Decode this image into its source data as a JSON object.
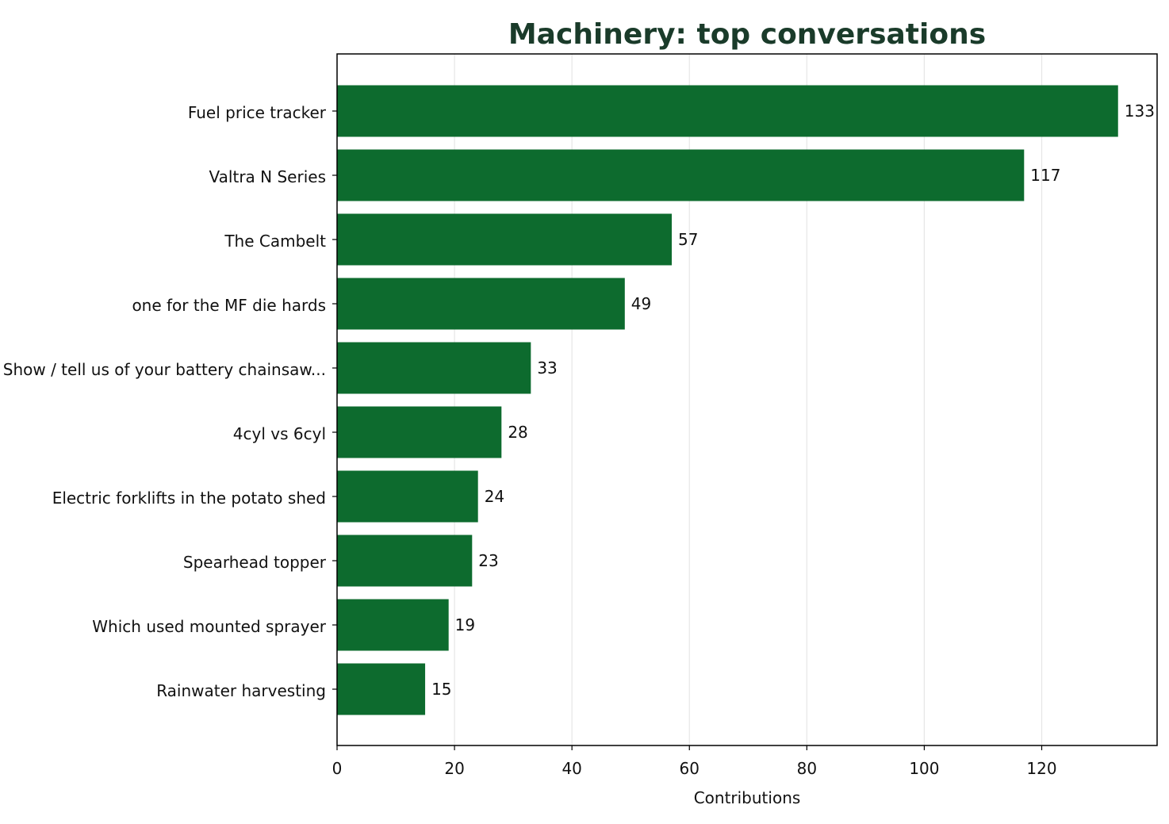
{
  "chart_data": {
    "type": "bar",
    "orientation": "horizontal",
    "title": "Machinery: top conversations",
    "xlabel": "Contributions",
    "ylabel": "",
    "categories": [
      "Fuel price tracker",
      "Valtra N Series",
      "The Cambelt",
      "one for the MF die hards",
      "Show / tell us of your battery chainsaw...",
      "4cyl vs 6cyl",
      "Electric forklifts in the potato shed",
      "Spearhead topper",
      "Which used mounted sprayer",
      "Rainwater harvesting"
    ],
    "values": [
      133,
      117,
      57,
      49,
      33,
      28,
      24,
      23,
      19,
      15
    ],
    "xlim": [
      0,
      139.65
    ],
    "xticks": [
      0,
      20,
      40,
      60,
      80,
      100,
      120
    ],
    "grid": "vertical",
    "data_labels": true,
    "colors": {
      "bar": "#0d6b2e",
      "title": "#1a3b2a",
      "grid": "#e6e6e6",
      "axis": "#000000"
    }
  }
}
